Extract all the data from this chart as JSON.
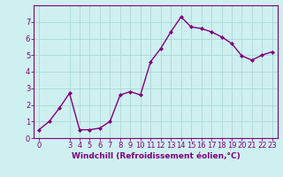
{
  "x": [
    0,
    1,
    2,
    3,
    4,
    5,
    6,
    7,
    8,
    9,
    10,
    11,
    12,
    13,
    14,
    15,
    16,
    17,
    18,
    19,
    20,
    21,
    22,
    23
  ],
  "y": [
    0.5,
    1.0,
    1.8,
    2.7,
    0.5,
    0.5,
    0.6,
    1.0,
    2.6,
    2.8,
    2.6,
    4.6,
    5.4,
    6.4,
    7.3,
    6.7,
    6.6,
    6.4,
    6.1,
    5.7,
    4.95,
    4.7,
    5.0,
    5.2
  ],
  "line_color": "#800080",
  "marker": "D",
  "marker_size": 2,
  "bg_color": "#cff0f0",
  "grid_color": "#aad8d8",
  "xlabel": "Windchill (Refroidissement éolien,°C)",
  "ylim": [
    0,
    8
  ],
  "xlim": [
    -0.5,
    23.5
  ],
  "yticks": [
    0,
    1,
    2,
    3,
    4,
    5,
    6,
    7
  ],
  "xticks": [
    0,
    3,
    4,
    5,
    6,
    7,
    8,
    9,
    10,
    11,
    12,
    13,
    14,
    15,
    16,
    17,
    18,
    19,
    20,
    21,
    22,
    23
  ],
  "xlabel_color": "#800080",
  "xlabel_fontsize": 6.5,
  "tick_color": "#800080",
  "tick_fontsize": 6,
  "spine_color": "#800080",
  "line_width": 1.0
}
